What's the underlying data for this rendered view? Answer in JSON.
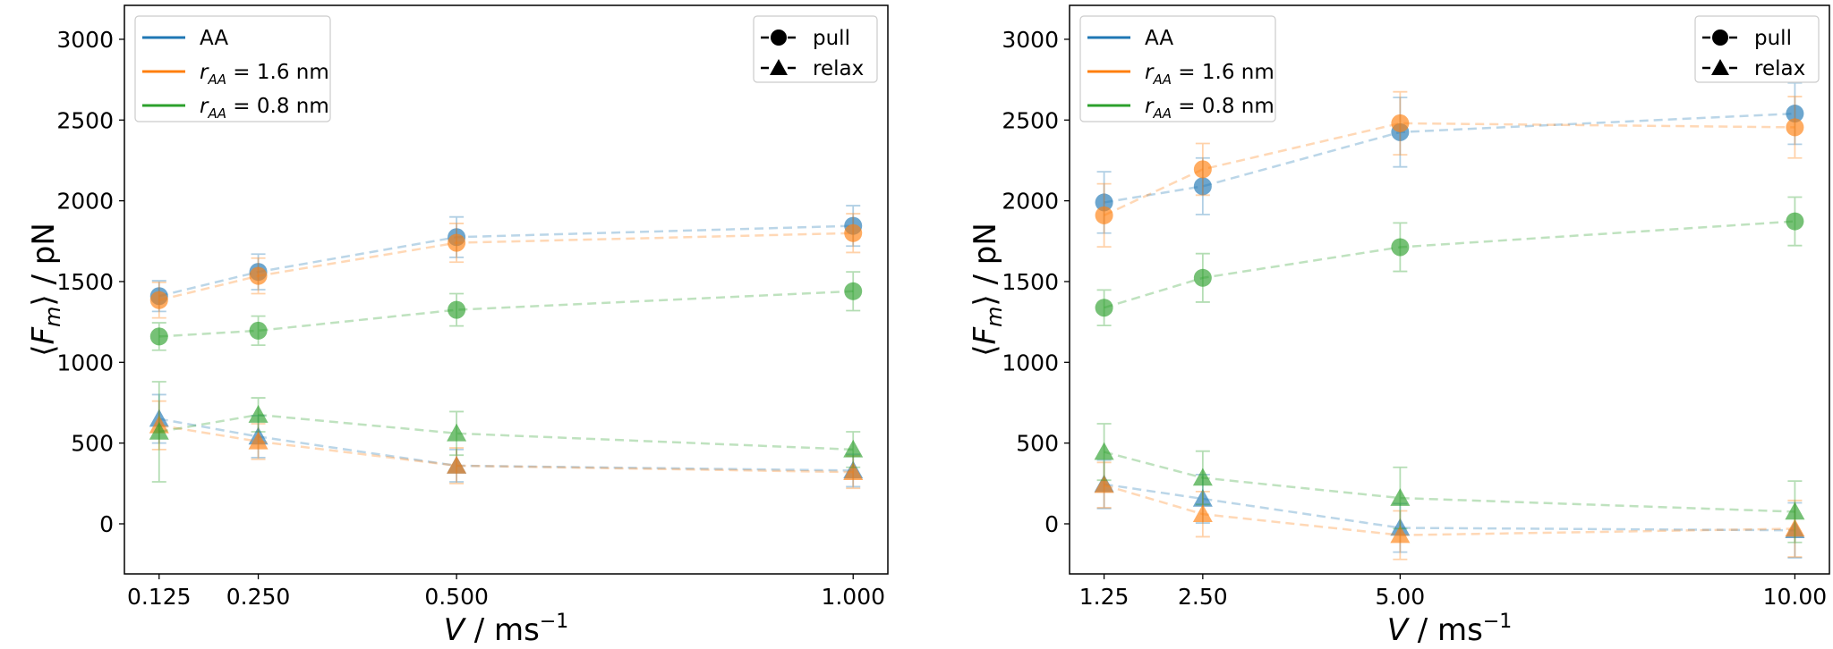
{
  "chart_data": [
    {
      "type": "scatter",
      "xlim": [
        0.08125,
        1.04375
      ],
      "ylim": [
        -310,
        3210
      ],
      "xticks": [
        0.125,
        0.25,
        0.5,
        1.0
      ],
      "xtick_labels": [
        "0.125",
        "0.250",
        "0.500",
        "1.000"
      ],
      "yticks": [
        0,
        500,
        1000,
        1500,
        2000,
        2500,
        3000
      ],
      "ytick_labels": [
        "0",
        "500",
        "1000",
        "1500",
        "2000",
        "2500",
        "3000"
      ],
      "xlabel_parts": [
        "V",
        " / ms",
        "−1"
      ],
      "ylabel_parts": [
        "⟨",
        "F",
        "m",
        "⟩ / pN"
      ],
      "grid": false,
      "series": [
        {
          "group": "AA",
          "kind": "pull",
          "x": [
            0.125,
            0.25,
            0.5,
            1.0
          ],
          "y": [
            1410,
            1560,
            1775,
            1845
          ],
          "err": [
            95,
            110,
            125,
            125
          ]
        },
        {
          "group": "r16",
          "kind": "pull",
          "x": [
            0.125,
            0.25,
            0.5,
            1.0
          ],
          "y": [
            1385,
            1535,
            1740,
            1800
          ],
          "err": [
            110,
            110,
            120,
            120
          ]
        },
        {
          "group": "r08",
          "kind": "pull",
          "x": [
            0.125,
            0.25,
            0.5,
            1.0
          ],
          "y": [
            1160,
            1196,
            1325,
            1440
          ],
          "err": [
            85,
            90,
            100,
            120
          ]
        },
        {
          "group": "AA",
          "kind": "relax",
          "x": [
            0.125,
            0.25,
            0.5,
            1.0
          ],
          "y": [
            650,
            540,
            360,
            330
          ],
          "err": [
            150,
            130,
            100,
            100
          ]
        },
        {
          "group": "r16",
          "kind": "relax",
          "x": [
            0.125,
            0.25,
            0.5,
            1.0
          ],
          "y": [
            610,
            510,
            360,
            320
          ],
          "err": [
            150,
            110,
            110,
            100
          ]
        },
        {
          "group": "r08",
          "kind": "relax",
          "x": [
            0.125,
            0.25,
            0.5,
            1.0
          ],
          "y": [
            570,
            675,
            560,
            460
          ],
          "err": [
            310,
            105,
            135,
            110
          ]
        }
      ]
    },
    {
      "type": "scatter",
      "xlim": [
        0.8125,
        10.4375
      ],
      "ylim": [
        -310,
        3210
      ],
      "xticks": [
        1.25,
        2.5,
        5.0,
        10.0
      ],
      "xtick_labels": [
        "1.25",
        "2.50",
        "5.00",
        "10.00"
      ],
      "yticks": [
        0,
        500,
        1000,
        1500,
        2000,
        2500,
        3000
      ],
      "ytick_labels": [
        "0",
        "500",
        "1000",
        "1500",
        "2000",
        "2500",
        "3000"
      ],
      "xlabel_parts": [
        "V",
        " / ms",
        "−1"
      ],
      "ylabel_parts": [
        "⟨",
        "F",
        "m",
        "⟩ / pN"
      ],
      "grid": false,
      "series": [
        {
          "group": "AA",
          "kind": "pull",
          "x": [
            1.25,
            2.5,
            5,
            10
          ],
          "y": [
            1990,
            2090,
            2425,
            2540
          ],
          "err": [
            190,
            175,
            215,
            190
          ]
        },
        {
          "group": "r16",
          "kind": "pull",
          "x": [
            1.25,
            2.5,
            5,
            10
          ],
          "y": [
            1910,
            2195,
            2480,
            2455
          ],
          "err": [
            195,
            160,
            195,
            190
          ]
        },
        {
          "group": "r08",
          "kind": "pull",
          "x": [
            1.25,
            2.5,
            5,
            10
          ],
          "y": [
            1338,
            1523,
            1713,
            1873
          ],
          "err": [
            110,
            150,
            150,
            150
          ]
        },
        {
          "group": "AA",
          "kind": "relax",
          "x": [
            1.25,
            2.5,
            5,
            10
          ],
          "y": [
            245,
            155,
            -25,
            -40
          ],
          "err": [
            150,
            150,
            150,
            170
          ]
        },
        {
          "group": "r16",
          "kind": "relax",
          "x": [
            1.25,
            2.5,
            5,
            10
          ],
          "y": [
            240,
            60,
            -70,
            -30
          ],
          "err": [
            140,
            140,
            150,
            175
          ]
        },
        {
          "group": "r08",
          "kind": "relax",
          "x": [
            1.25,
            2.5,
            5,
            10
          ],
          "y": [
            445,
            285,
            160,
            75
          ],
          "err": [
            175,
            165,
            190,
            190
          ]
        }
      ]
    }
  ],
  "legend": {
    "placement": "upper-left",
    "groups": [
      {
        "id": "AA",
        "symbol": "AA",
        "sub": "",
        "rest": "",
        "color": "#1f77b4"
      },
      {
        "id": "r16",
        "symbol": "r",
        "sub": "AA",
        "rest": " = 1.6 nm",
        "color": "#ff7f0e"
      },
      {
        "id": "r08",
        "symbol": "r",
        "sub": "AA",
        "rest": " = 0.8 nm",
        "color": "#2ca02c"
      }
    ]
  },
  "marker_legend": {
    "placement": "upper-right",
    "items": [
      {
        "kind": "pull",
        "marker": "circle",
        "label": "pull"
      },
      {
        "kind": "relax",
        "marker": "triangle",
        "label": "relax"
      }
    ]
  }
}
